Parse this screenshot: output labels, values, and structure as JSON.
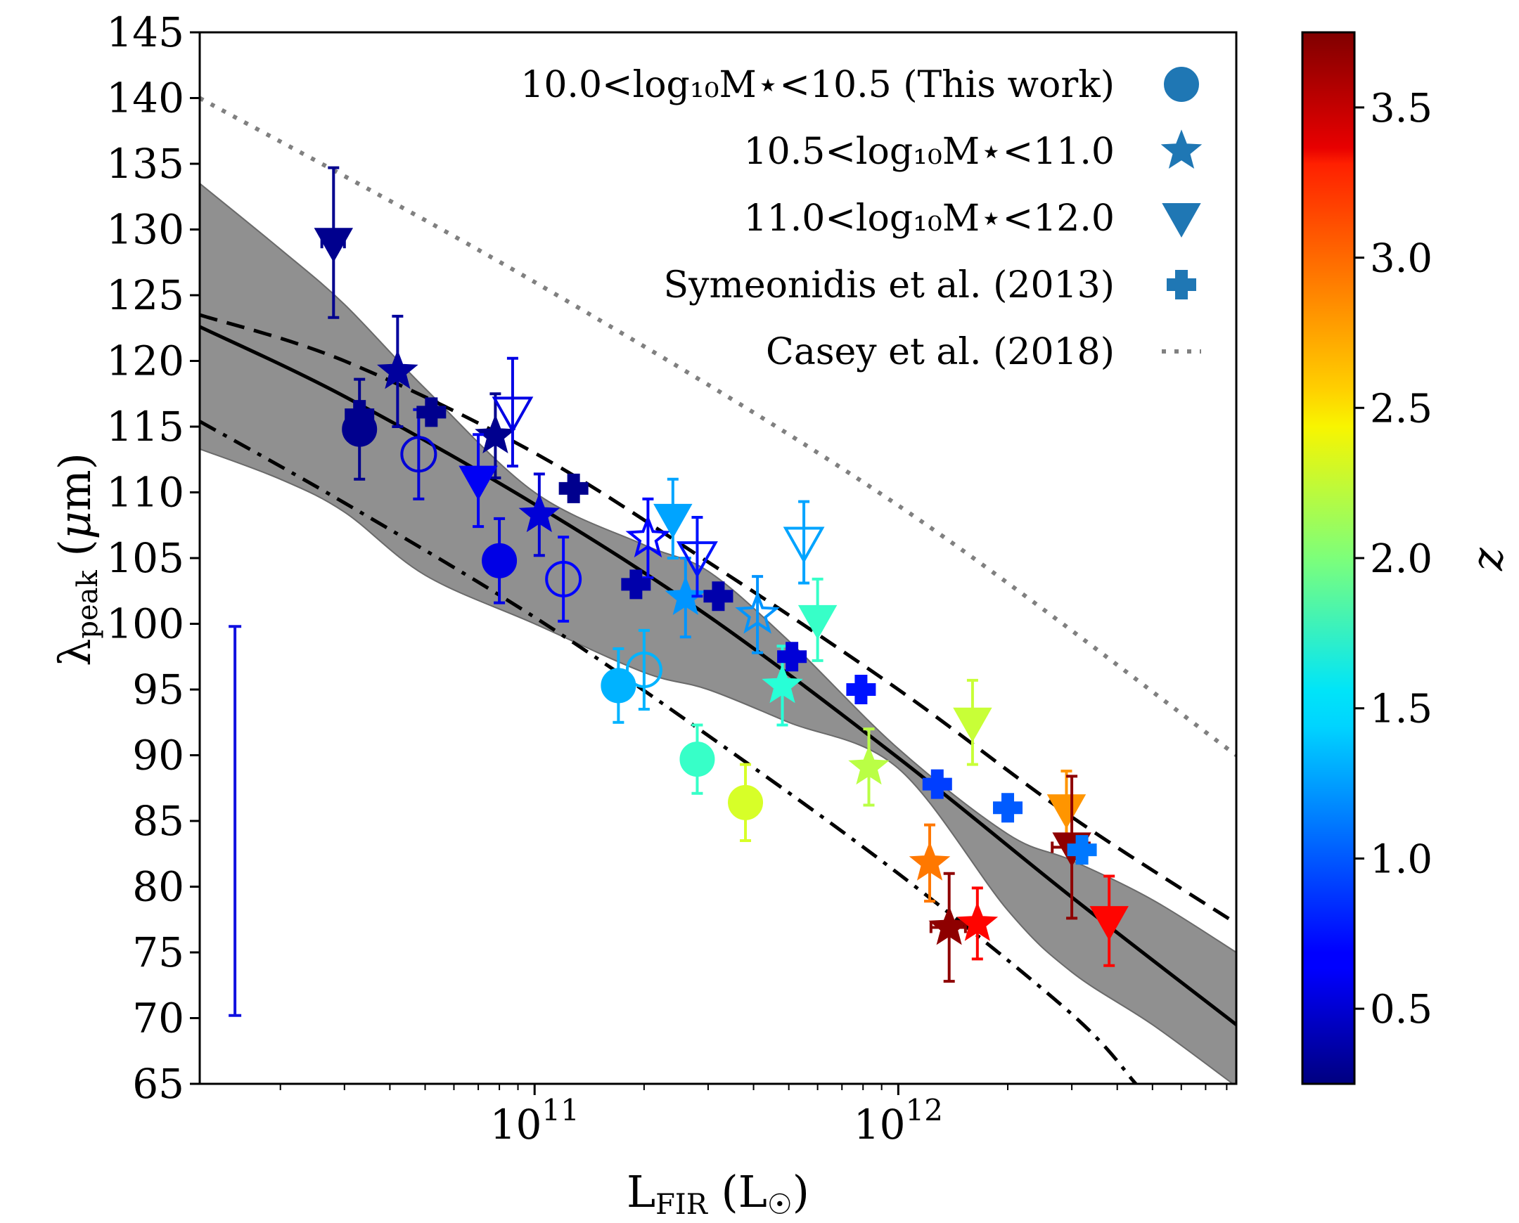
{
  "chart_data": {
    "type": "scatter",
    "title": "",
    "xlabel": "L_FIR (L☉)",
    "ylabel": "λ_peak (μm)",
    "xscale": "log",
    "xlim": [
      12000000000.0,
      8500000000000.0
    ],
    "ylim": [
      65,
      145
    ],
    "y_ticks": [
      65,
      70,
      75,
      80,
      85,
      90,
      95,
      100,
      105,
      110,
      115,
      120,
      125,
      130,
      135,
      140,
      145
    ],
    "x_ticks": [
      {
        "value": 100000000000.0,
        "base": "10",
        "exp": "11"
      },
      {
        "value": 1000000000000.0,
        "base": "10",
        "exp": "12"
      }
    ],
    "colorbar": {
      "label": "z",
      "range": [
        0.25,
        3.75
      ],
      "ticks": [
        0.5,
        1.0,
        1.5,
        2.0,
        2.5,
        3.0,
        3.5
      ],
      "tick_labels": [
        "0.5",
        "1.0",
        "1.5",
        "2.0",
        "2.5",
        "3.0",
        "3.5"
      ],
      "colormap": "jet"
    },
    "legend": {
      "placement": "top-right",
      "entries": [
        {
          "label": "10.0<log₁₀M⋆<10.5 (This work)",
          "marker": "circle",
          "color": "#1f77b4"
        },
        {
          "label": "10.5<log₁₀M⋆<11.0",
          "marker": "star",
          "color": "#1f77b4"
        },
        {
          "label": "11.0<log₁₀M⋆<12.0",
          "marker": "triangle-down",
          "color": "#1f77b4"
        },
        {
          "label": "Symeonidis et al. (2013)",
          "marker": "plus",
          "color": "#1f77b4"
        },
        {
          "label": "Casey et al. (2018)",
          "marker": "dotted-line",
          "color": "#808080"
        }
      ]
    },
    "curves": [
      {
        "name": "best-fit",
        "style": "solid",
        "color": "#000000",
        "x": [
          12000000000.0,
          30000000000.0,
          100000000000.0,
          300000000000.0,
          1000000000000.0,
          3000000000000.0,
          8500000000000.0
        ],
        "y": [
          122.6,
          117.3,
          109.1,
          100.6,
          89.8,
          79.2,
          69.5
        ]
      },
      {
        "name": "upper",
        "style": "dashed",
        "color": "#000000",
        "x": [
          12000000000.0,
          30000000000.0,
          100000000000.0,
          300000000000.0,
          1000000000000.0,
          3000000000000.0,
          8500000000000.0
        ],
        "y": [
          123.5,
          120.0,
          113.0,
          104.7,
          95.0,
          85.3,
          77.2
        ]
      },
      {
        "name": "lower",
        "style": "dashdot",
        "color": "#000000",
        "x": [
          12000000000.0,
          30000000000.0,
          100000000000.0,
          300000000000.0,
          1000000000000.0,
          3000000000000.0,
          4500000000000.0
        ],
        "y": [
          115.4,
          109.2,
          100.5,
          91.5,
          81.0,
          70.3,
          65.0
        ]
      },
      {
        "name": "Casey et al. (2018)",
        "style": "dotted",
        "color": "#808080",
        "x": [
          12000000000.0,
          100000000000.0,
          1000000000000.0,
          8500000000000.0
        ],
        "y": [
          140.0,
          126.0,
          109.0,
          90.0
        ]
      }
    ],
    "band": {
      "color": "#909090",
      "x": [
        12000000000.0,
        20000000000.0,
        30000000000.0,
        50000000000.0,
        100000000000.0,
        200000000000.0,
        300000000000.0,
        500000000000.0,
        1000000000000.0,
        2000000000000.0,
        3000000000000.0,
        5000000000000.0,
        8500000000000.0
      ],
      "upper": [
        133.5,
        128.5,
        124.3,
        117.9,
        110.0,
        106.0,
        104.0,
        98.7,
        90.5,
        84.0,
        82.0,
        79.0,
        75.0
      ],
      "lower": [
        113.3,
        111.0,
        108.5,
        103.7,
        100.0,
        96.3,
        95.0,
        92.5,
        89.0,
        78.2,
        73.5,
        69.5,
        64.8
      ]
    },
    "representative_error": {
      "x": 15000000000.0,
      "ymin": 70.2,
      "ymax": 99.8,
      "color": "#1010e0"
    },
    "series": [
      {
        "name": "10.0<log₁₀M⋆<10.5 (This work)",
        "marker": "circle",
        "points": [
          {
            "x": 33000000000.0,
            "y": 114.8,
            "z": 0.3,
            "yerr": [
              3.8,
              3.8
            ],
            "filled": true
          },
          {
            "x": 48000000000.0,
            "y": 112.9,
            "z": 0.55,
            "yerr": [
              3.4,
              3.4
            ],
            "filled": false
          },
          {
            "x": 80000000000.0,
            "y": 104.8,
            "z": 0.6,
            "yerr": [
              3.2,
              3.2
            ],
            "filled": true
          },
          {
            "x": 120000000000.0,
            "y": 103.4,
            "z": 0.7,
            "yerr": [
              3.2,
              3.2
            ],
            "filled": false
          },
          {
            "x": 170000000000.0,
            "y": 95.3,
            "z": 1.3,
            "yerr": [
              2.8,
              2.8
            ],
            "filled": true
          },
          {
            "x": 200000000000.0,
            "y": 96.5,
            "z": 1.3,
            "yerr": [
              3.0,
              3.0
            ],
            "filled": false
          },
          {
            "x": 280000000000.0,
            "y": 89.7,
            "z": 1.75,
            "yerr": [
              2.6,
              2.6
            ],
            "filled": true
          },
          {
            "x": 380000000000.0,
            "y": 86.4,
            "z": 2.3,
            "yerr": [
              2.9,
              2.9
            ],
            "filled": true
          }
        ]
      },
      {
        "name": "10.5<log₁₀M⋆<11.0",
        "marker": "star",
        "points": [
          {
            "x": 42000000000.0,
            "y": 119.2,
            "z": 0.35,
            "yerr": [
              4.2,
              4.2
            ],
            "filled": true
          },
          {
            "x": 78000000000.0,
            "y": 114.3,
            "z": 0.3,
            "yerr": [
              3.2,
              3.2
            ],
            "filled": true
          },
          {
            "x": 103000000000.0,
            "y": 108.3,
            "z": 0.55,
            "yerr": [
              3.1,
              3.1
            ],
            "filled": true
          },
          {
            "x": 205000000000.0,
            "y": 106.5,
            "z": 0.7,
            "yerr": [
              3.0,
              3.0
            ],
            "filled": false
          },
          {
            "x": 260000000000.0,
            "y": 102.0,
            "z": 1.2,
            "yerr": [
              3.0,
              3.0
            ],
            "filled": true
          },
          {
            "x": 410000000000.0,
            "y": 100.7,
            "z": 1.2,
            "yerr": [
              2.9,
              2.9
            ],
            "filled": false
          },
          {
            "x": 480000000000.0,
            "y": 95.3,
            "z": 1.7,
            "yerr": [
              3.0,
              3.0
            ],
            "filled": true
          },
          {
            "x": 830000000000.0,
            "y": 89.1,
            "z": 2.2,
            "yerr": [
              2.9,
              2.9
            ],
            "filled": true
          },
          {
            "x": 1220000000000.0,
            "y": 81.8,
            "z": 2.9,
            "yerr": [
              2.9,
              2.9
            ],
            "filled": true
          },
          {
            "x": 1380000000000.0,
            "y": 76.9,
            "z": 3.7,
            "yerr": [
              4.1,
              4.1
            ],
            "filled": true,
            "xerr": [
              150000000000.0,
              150000000000.0
            ]
          },
          {
            "x": 1650000000000.0,
            "y": 77.2,
            "z": 3.3,
            "yerr": [
              2.7,
              2.7
            ],
            "filled": true
          }
        ]
      },
      {
        "name": "11.0<log₁₀M⋆<12.0",
        "marker": "triangle-down",
        "points": [
          {
            "x": 28000000000.0,
            "y": 129.0,
            "z": 0.3,
            "yerr": [
              5.7,
              5.7
            ],
            "filled": true,
            "xerr": [
              2000000000.0,
              2000000000.0
            ]
          },
          {
            "x": 70000000000.0,
            "y": 110.9,
            "z": 0.65,
            "yerr": [
              3.5,
              3.5
            ],
            "filled": true
          },
          {
            "x": 87000000000.0,
            "y": 116.1,
            "z": 0.6,
            "yerr": [
              4.1,
              4.1
            ],
            "filled": false
          },
          {
            "x": 240000000000.0,
            "y": 108.0,
            "z": 1.25,
            "yerr": [
              3.0,
              3.0
            ],
            "filled": true
          },
          {
            "x": 280000000000.0,
            "y": 105.1,
            "z": 0.75,
            "yerr": [
              3.0,
              3.0
            ],
            "filled": false
          },
          {
            "x": 550000000000.0,
            "y": 106.2,
            "z": 1.25,
            "yerr": [
              3.1,
              3.1
            ],
            "filled": false
          },
          {
            "x": 600000000000.0,
            "y": 100.3,
            "z": 1.75,
            "yerr": [
              3.1,
              3.1
            ],
            "filled": true
          },
          {
            "x": 1600000000000.0,
            "y": 92.5,
            "z": 2.25,
            "yerr": [
              3.2,
              3.2
            ],
            "filled": true
          },
          {
            "x": 2900000000000.0,
            "y": 85.9,
            "z": 2.8,
            "yerr": [
              2.9,
              2.9
            ],
            "filled": true
          },
          {
            "x": 3000000000000.0,
            "y": 83.0,
            "z": 3.7,
            "yerr": [
              5.4,
              5.4
            ],
            "filled": true,
            "xerr": [
              350000000000.0,
              350000000000.0
            ]
          },
          {
            "x": 3800000000000.0,
            "y": 77.4,
            "z": 3.3,
            "yerr": [
              3.4,
              3.4
            ],
            "filled": true
          }
        ]
      },
      {
        "name": "Symeonidis et al. (2013)",
        "marker": "plus",
        "points": [
          {
            "x": 33000000000.0,
            "y": 115.9,
            "z": 0.3,
            "filled": true
          },
          {
            "x": 52000000000.0,
            "y": 116.1,
            "z": 0.3,
            "filled": true
          },
          {
            "x": 128000000000.0,
            "y": 110.3,
            "z": 0.3,
            "filled": true
          },
          {
            "x": 190000000000.0,
            "y": 103.0,
            "z": 0.4,
            "filled": true
          },
          {
            "x": 320000000000.0,
            "y": 102.1,
            "z": 0.4,
            "filled": true
          },
          {
            "x": 510000000000.0,
            "y": 97.5,
            "z": 0.55,
            "filled": true
          },
          {
            "x": 790000000000.0,
            "y": 95.0,
            "z": 0.75,
            "filled": true
          },
          {
            "x": 1280000000000.0,
            "y": 87.8,
            "z": 0.9,
            "filled": true
          },
          {
            "x": 2000000000000.0,
            "y": 86.0,
            "z": 1.0,
            "filled": true
          },
          {
            "x": 3200000000000.0,
            "y": 82.8,
            "z": 1.1,
            "filled": true
          }
        ]
      }
    ]
  }
}
